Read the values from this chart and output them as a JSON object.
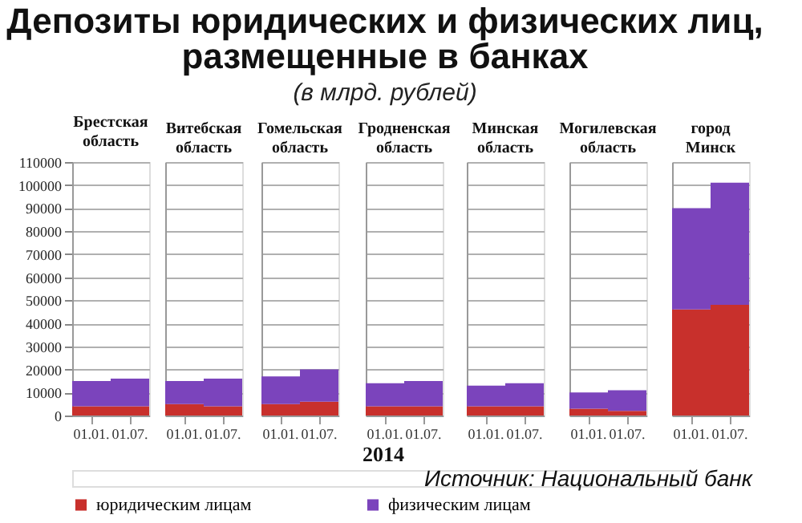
{
  "chart_data": [
    {
      "type": "bar",
      "title": "Брестская область",
      "categories": [
        "01.01.",
        "01.07."
      ],
      "stacked": true,
      "ylim": [
        0,
        110000
      ],
      "yticks": [
        0,
        10000,
        20000,
        30000,
        40000,
        50000,
        60000,
        70000,
        80000,
        90000,
        100000,
        110000
      ],
      "grid": "y",
      "legend": "bottom",
      "annotations": [
        "Депозиты юридических и физических лиц, размещенные в банках",
        "(в млрд. рублей)",
        "2014",
        "Источник: Национальный банк"
      ],
      "series": [
        {
          "name": "юридическим лицам",
          "color": "#c8302c",
          "values": [
            4000,
            4000
          ]
        },
        {
          "name": "физическим лицам",
          "color": "#7b44bc",
          "values": [
            11000,
            12000
          ]
        }
      ]
    },
    {
      "type": "bar",
      "title": "Витебская область",
      "categories": [
        "01.01.",
        "01.07."
      ],
      "stacked": true,
      "ylim": [
        0,
        110000
      ],
      "grid": "y",
      "tick_labels": "x",
      "series": [
        {
          "name": "юридическим лицам",
          "color": "#c8302c",
          "values": [
            5000,
            4000
          ]
        },
        {
          "name": "физическим лицам",
          "color": "#7b44bc",
          "values": [
            10000,
            12000
          ]
        }
      ]
    },
    {
      "type": "bar",
      "title": "Гомельская область",
      "categories": [
        "01.01.",
        "01.07."
      ],
      "stacked": true,
      "ylim": [
        0,
        110000
      ],
      "grid": "y",
      "tick_labels": "x",
      "series": [
        {
          "name": "юридическим лицам",
          "color": "#c8302c",
          "values": [
            5000,
            6000
          ]
        },
        {
          "name": "физическим лицам",
          "color": "#7b44bc",
          "values": [
            12000,
            14000
          ]
        }
      ]
    },
    {
      "type": "bar",
      "title": "Гродненская область",
      "categories": [
        "01.01.",
        "01.07."
      ],
      "stacked": true,
      "ylim": [
        0,
        110000
      ],
      "grid": "y",
      "tick_labels": "x",
      "series": [
        {
          "name": "юридическим лицам",
          "color": "#c8302c",
          "values": [
            4000,
            4000
          ]
        },
        {
          "name": "физическим лицам",
          "color": "#7b44bc",
          "values": [
            10000,
            11000
          ]
        }
      ]
    },
    {
      "type": "bar",
      "title": "Минская область",
      "categories": [
        "01.01.",
        "01.07."
      ],
      "stacked": true,
      "ylim": [
        0,
        110000
      ],
      "grid": "y",
      "tick_labels": "x",
      "series": [
        {
          "name": "юридическим лицам",
          "color": "#c8302c",
          "values": [
            4000,
            4000
          ]
        },
        {
          "name": "физическим лицам",
          "color": "#7b44bc",
          "values": [
            9000,
            10000
          ]
        }
      ]
    },
    {
      "type": "bar",
      "title": "Могилевская область",
      "categories": [
        "01.01.",
        "01.07."
      ],
      "stacked": true,
      "ylim": [
        0,
        110000
      ],
      "grid": "y",
      "tick_labels": "x",
      "series": [
        {
          "name": "юридическим лицам",
          "color": "#c8302c",
          "values": [
            3000,
            2000
          ]
        },
        {
          "name": "физическим лицам",
          "color": "#7b44bc",
          "values": [
            7000,
            9000
          ]
        }
      ]
    },
    {
      "type": "bar",
      "title": "город Минск",
      "categories": [
        "01.01.",
        "01.07."
      ],
      "stacked": true,
      "ylim": [
        0,
        110000
      ],
      "grid": "y",
      "tick_labels": "x",
      "series": [
        {
          "name": "юридическим лицам",
          "color": "#c8302c",
          "values": [
            46000,
            48000
          ]
        },
        {
          "name": "физическим лицам",
          "color": "#7b44bc",
          "values": [
            44000,
            53000
          ]
        }
      ]
    }
  ]
}
